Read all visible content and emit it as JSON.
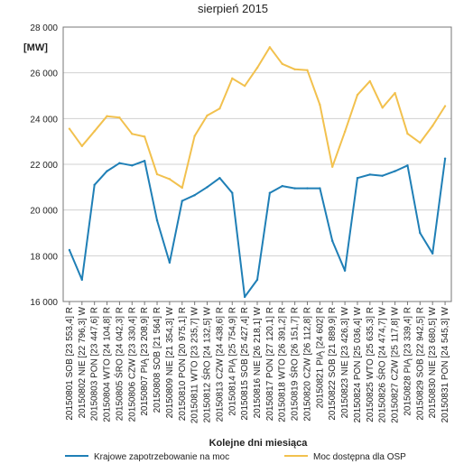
{
  "chart_data": {
    "type": "line",
    "title": "sierpień 2015",
    "unit_label": "[MW]",
    "xlabel": "Kolejne dni miesiąca",
    "ylim": [
      16000,
      28000
    ],
    "y_ticks": [
      "16 000",
      "18 000",
      "20 000",
      "22 000",
      "24 000",
      "26 000",
      "28 000"
    ],
    "y_tick_values": [
      16000,
      18000,
      20000,
      22000,
      24000,
      26000,
      28000
    ],
    "grid": true,
    "legend_position": "bottom",
    "categories": [
      "20150801  SOB [23 553,4] R",
      "20150802  NIE [22 796,3] W",
      "20150803  PON [23 447,6] R",
      "20150804  WTO [24 104,8] R",
      "20150805  ŚRO [24 042,3] R",
      "20150806  CZW [23 330,4] R",
      "20150807  PIĄ [23 208,9] R",
      "20150808  SOB [21 564] R",
      "20150809  NIE [21 354,3] W",
      "20150810  PON [20 975,1] R",
      "20150811  WTO [23 235,7] W",
      "20150812  ŚRO [24 132,5] W",
      "20150813  CZW [24 438,6] R",
      "20150814  PIĄ [25 754,9] R",
      "20150815  SOB [25 427,4] R",
      "20150816  NIE [26 218,1] W",
      "20150817  PON [27 120,1] R",
      "20150818  WTO [26 391,2] R",
      "20150819  ŚRO [26 151,7] R",
      "20150820  CZW [26 112,8] R",
      "20150821  PIĄ [24 602] R",
      "20150822  SOB [21 889,9] R",
      "20150823  NIE [23 426,3] W",
      "20150824  PON [25 036,4] W",
      "20150825  WTO [25 635,3] R",
      "20150826  ŚRO [24 474,7] W",
      "20150827  CZW [25 117,8] W",
      "20150828  PIĄ [23 339,4] R",
      "20150829  SOB [22 942,5] R",
      "20150830  NIE [23 680,5] W",
      "20150831  PON [24 545,3] W"
    ],
    "series": [
      {
        "name": "Krajowe zapotrzebowanie na moc",
        "color": "#1f7fb6",
        "values": [
          18250,
          16950,
          21100,
          21700,
          22050,
          21950,
          22150,
          19550,
          17700,
          20400,
          20650,
          21000,
          21400,
          20750,
          16200,
          16950,
          20750,
          21050,
          20950,
          20950,
          20950,
          18650,
          17350,
          21400,
          21550,
          21500,
          21700,
          21950,
          19000,
          18100,
          22250
        ]
      },
      {
        "name": "Moc dostępna dla OSP",
        "color": "#f2c14e",
        "values": [
          23553.4,
          22796.3,
          23447.6,
          24104.8,
          24042.3,
          23330.4,
          23208.9,
          21564,
          21354.3,
          20975.1,
          23235.7,
          24132.5,
          24438.6,
          25754.9,
          25427.4,
          26218.1,
          27120.1,
          26391.2,
          26151.7,
          26112.8,
          24602,
          21889.9,
          23426.3,
          25036.4,
          25635.3,
          24474.7,
          25117.8,
          23339.4,
          22942.5,
          23680.5,
          24545.3
        ]
      }
    ]
  }
}
